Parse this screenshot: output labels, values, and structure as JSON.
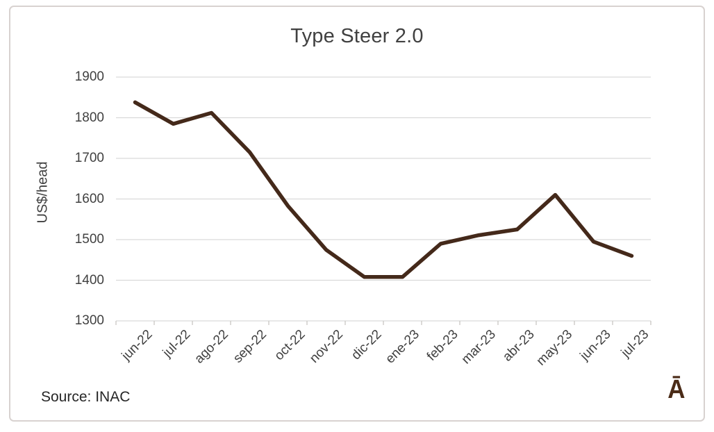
{
  "chart_data": {
    "type": "line",
    "title": "Type Steer 2.0",
    "xlabel": "",
    "ylabel": "US$/head",
    "categories": [
      "jun-22",
      "jul-22",
      "ago-22",
      "sep-22",
      "oct-22",
      "nov-22",
      "dic-22",
      "ene-23",
      "feb-23",
      "mar-23",
      "abr-23",
      "may-23",
      "jun-23",
      "jul-23"
    ],
    "values": [
      1838,
      1785,
      1812,
      1715,
      1583,
      1475,
      1408,
      1408,
      1490,
      1511,
      1525,
      1610,
      1495,
      1460
    ],
    "ylim": [
      1300,
      1900
    ],
    "yticks": [
      1300,
      1400,
      1500,
      1600,
      1700,
      1800,
      1900
    ],
    "legend": "none",
    "grid": "horizontal",
    "line_color": "#44291A",
    "grid_color": "#D9D9D9",
    "axis_color": "#C8C6C4",
    "text_color": "#404040"
  },
  "source": {
    "label": "Source: INAC"
  },
  "logo": {
    "glyph": "Ā",
    "color": "#4A2B17"
  }
}
